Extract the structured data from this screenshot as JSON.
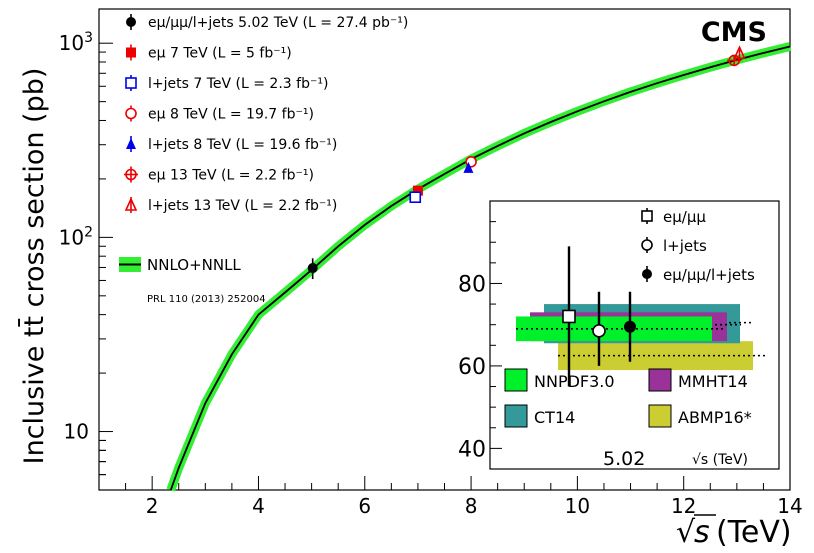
{
  "chart_data": {
    "type": "scatter",
    "brand": "CMS",
    "xlabel_prefix": "√",
    "xlabel_var": "s",
    "xlabel_unit": "(TeV)",
    "ylabel": "Inclusive tt̄ cross section (pb)",
    "xlim": [
      1,
      14
    ],
    "ylim": [
      5,
      1500
    ],
    "yscale": "log",
    "x_ticks": [
      2,
      4,
      6,
      8,
      10,
      12,
      14
    ],
    "y_ticks": [
      {
        "value": 10,
        "label": "10"
      },
      {
        "value": 100,
        "label": "10²"
      },
      {
        "value": 1000,
        "label": "10³"
      }
    ],
    "theory": {
      "label": "NNLO+NNLL",
      "reference": "PRL 110 (2013) 252004",
      "color": "#33ee33",
      "curve": [
        [
          2.35,
          5
        ],
        [
          2.5,
          6.5
        ],
        [
          3,
          14
        ],
        [
          3.5,
          25
        ],
        [
          4,
          40
        ],
        [
          4.5,
          52
        ],
        [
          5,
          68
        ],
        [
          5.5,
          90
        ],
        [
          6,
          116
        ],
        [
          6.5,
          145
        ],
        [
          7,
          177
        ],
        [
          7.5,
          212
        ],
        [
          8,
          253
        ],
        [
          8.5,
          296
        ],
        [
          9,
          343
        ],
        [
          9.5,
          393
        ],
        [
          10,
          446
        ],
        [
          10.5,
          502
        ],
        [
          11,
          561
        ],
        [
          11.5,
          622
        ],
        [
          12,
          686
        ],
        [
          12.5,
          752
        ],
        [
          13,
          820
        ],
        [
          13.5,
          890
        ],
        [
          14,
          962
        ]
      ]
    },
    "series": [
      {
        "name": "eμ/μμ/l+jets",
        "energy": "5.02 TeV",
        "lumi": "(L = 27.4 pb⁻¹)",
        "marker": "circle-filled",
        "color": "#000000",
        "x": 5.02,
        "y": 69.5,
        "err": [
          61,
          78
        ]
      },
      {
        "name": "eμ",
        "energy": "7 TeV",
        "lumi": "(L = 5 fb⁻¹)",
        "marker": "square-filled",
        "color": "#ee0000",
        "x": 7.0,
        "y": 174,
        "err": [
          166,
          182
        ]
      },
      {
        "name": "l+jets",
        "energy": "7 TeV",
        "lumi": "(L = 2.3 fb⁻¹)",
        "marker": "square-open",
        "color": "#0000ee",
        "x": 6.95,
        "y": 161,
        "err": [
          152,
          170
        ]
      },
      {
        "name": "eμ",
        "energy": "8 TeV",
        "lumi": "(L = 19.7 fb⁻¹)",
        "marker": "circle-open",
        "color": "#ee0000",
        "x": 8.0,
        "y": 245,
        "err": [
          236,
          254
        ]
      },
      {
        "name": "l+jets",
        "energy": "8 TeV",
        "lumi": "(L = 19.6 fb⁻¹)",
        "marker": "triangle-filled",
        "color": "#0000ee",
        "x": 7.95,
        "y": 228,
        "err": [
          218,
          238
        ]
      },
      {
        "name": "eμ",
        "energy": "13 TeV",
        "lumi": "(L = 2.2 fb⁻¹)",
        "marker": "circle-open-cross",
        "color": "#ee0000",
        "x": 12.95,
        "y": 815,
        "err": [
          770,
          860
        ]
      },
      {
        "name": "l+jets",
        "energy": "13 TeV",
        "lumi": "(L = 2.2 fb⁻¹)",
        "marker": "triangle-open",
        "color": "#ee0000",
        "x": 13.05,
        "y": 888,
        "err": [
          840,
          935
        ]
      }
    ],
    "inset": {
      "xlabel": "√s (TeV)",
      "center_label": "5.02",
      "ylim": [
        35,
        100
      ],
      "y_ticks": [
        40,
        60,
        80
      ],
      "measurements": [
        {
          "name": "eμ/μμ",
          "marker": "square-open",
          "value": 72,
          "err": [
            55,
            89
          ]
        },
        {
          "name": "l+jets",
          "marker": "circle-open",
          "value": 68.5,
          "err": [
            60,
            78
          ]
        },
        {
          "name": "eμ/μμ/l+jets",
          "marker": "circle-filled",
          "value": 69.5,
          "err": [
            61,
            78
          ]
        }
      ],
      "pdfs": [
        {
          "name": "NNPDF3.0",
          "color": "#00f02a",
          "central": 69.0,
          "low": 66,
          "high": 72
        },
        {
          "name": "MMHT14",
          "color": "#993399",
          "central": 70.0,
          "low": 66,
          "high": 73
        },
        {
          "name": "CT14",
          "color": "#339999",
          "central": 70.5,
          "low": 65.5,
          "high": 75
        },
        {
          "name": "ABMP16*",
          "color": "#cccc33",
          "central": 62.5,
          "low": 59,
          "high": 66
        }
      ]
    }
  }
}
